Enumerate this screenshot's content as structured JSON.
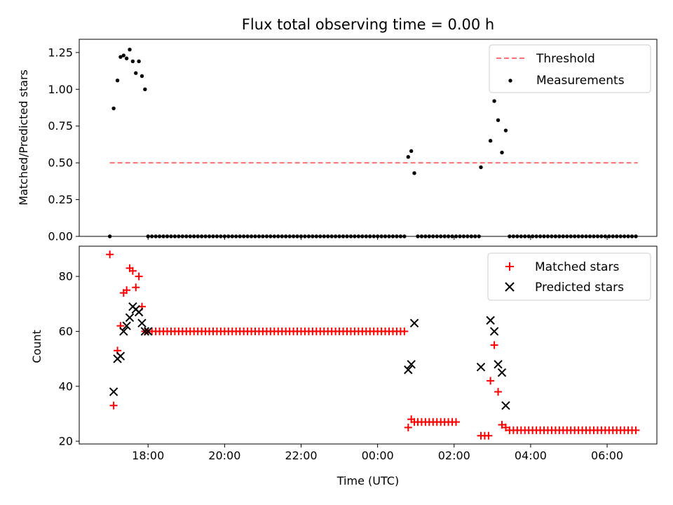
{
  "chart_data": [
    {
      "type": "scatter",
      "title": "Flux total observing time = 0.00 h",
      "ylabel": "Matched/Predicted stars",
      "xlabel": "",
      "x_unit": "hours since 17:00 UTC",
      "xlim": [
        -0.8,
        14.3
      ],
      "ylim": [
        0,
        1.34
      ],
      "yticks": [
        0,
        0.25,
        0.5,
        0.75,
        1.0,
        1.25
      ],
      "ytick_labels": [
        "0.00",
        "0.25",
        "0.50",
        "0.75",
        "1.00",
        "1.25"
      ],
      "xticks": [
        1,
        3,
        5,
        7,
        9,
        11,
        13
      ],
      "legend": "top-right",
      "series": [
        {
          "name": "Threshold",
          "style": "dashed-line",
          "color": "#ff7070",
          "x": [
            0.0,
            13.8
          ],
          "y": [
            0.5,
            0.5
          ]
        },
        {
          "name": "Measurements",
          "style": "dot",
          "color": "#000000",
          "x": [
            0.0,
            0.1,
            0.2,
            0.28,
            0.36,
            0.44,
            0.52,
            0.6,
            0.68,
            0.76,
            0.84,
            0.92,
            1.0,
            7.8,
            7.88,
            7.96,
            9.7,
            9.95,
            10.05,
            10.15,
            10.25,
            10.35
          ],
          "y": [
            0.0,
            0.87,
            1.06,
            1.22,
            1.23,
            1.21,
            1.27,
            1.19,
            1.11,
            1.19,
            1.09,
            1.0,
            0.0,
            0.54,
            0.58,
            0.43,
            0.47,
            0.65,
            0.92,
            0.79,
            0.57,
            0.72
          ],
          "zero_runs": [
            [
              1.1,
              7.75
            ],
            [
              8.05,
              9.65
            ],
            [
              10.45,
              13.8
            ]
          ],
          "zero_step": 0.1
        }
      ]
    },
    {
      "type": "scatter",
      "title": "",
      "ylabel": "Count",
      "xlabel": "Time (UTC)",
      "x_unit": "hours since 17:00 UTC",
      "xlim": [
        -0.8,
        14.3
      ],
      "ylim": [
        19,
        91
      ],
      "yticks": [
        20,
        40,
        60,
        80
      ],
      "ytick_labels": [
        "20",
        "40",
        "60",
        "80"
      ],
      "xticks": [
        1,
        3,
        5,
        7,
        9,
        11,
        13
      ],
      "xtick_labels": [
        "18:00",
        "20:00",
        "22:00",
        "00:00",
        "02:00",
        "04:00",
        "06:00"
      ],
      "legend": "top-right",
      "series": [
        {
          "name": "Matched stars",
          "style": "plus",
          "color": "#ff0000",
          "x": [
            0.0,
            0.1,
            0.2,
            0.28,
            0.36,
            0.44,
            0.52,
            0.6,
            0.68,
            0.76,
            0.84,
            0.92,
            1.0,
            7.8,
            7.88,
            7.96,
            9.7,
            9.8,
            9.9,
            9.95,
            10.05,
            10.15,
            10.25,
            10.35
          ],
          "y": [
            88,
            33,
            53,
            62,
            74,
            75,
            83,
            82,
            76,
            80,
            69,
            60,
            60,
            25,
            28,
            27,
            22,
            22,
            22,
            42,
            55,
            38,
            26,
            25
          ],
          "flat_runs": [
            {
              "from": 1.1,
              "to": 7.75,
              "step": 0.1,
              "y": 60
            },
            {
              "from": 8.05,
              "to": 9.05,
              "step": 0.1,
              "y": 27
            },
            {
              "from": 10.45,
              "to": 13.8,
              "step": 0.1,
              "y": 24
            }
          ]
        },
        {
          "name": "Predicted stars",
          "style": "x",
          "color": "#000000",
          "x": [
            0.1,
            0.2,
            0.28,
            0.36,
            0.44,
            0.52,
            0.6,
            0.68,
            0.76,
            0.84,
            0.92,
            1.0,
            7.8,
            7.88,
            7.96,
            9.7,
            9.95,
            10.05,
            10.15,
            10.25,
            10.35
          ],
          "y": [
            38,
            50,
            51,
            60,
            62,
            65,
            69,
            68,
            67,
            63,
            60,
            60,
            46,
            48,
            63,
            47,
            64,
            60,
            48,
            45,
            33
          ]
        }
      ]
    }
  ]
}
